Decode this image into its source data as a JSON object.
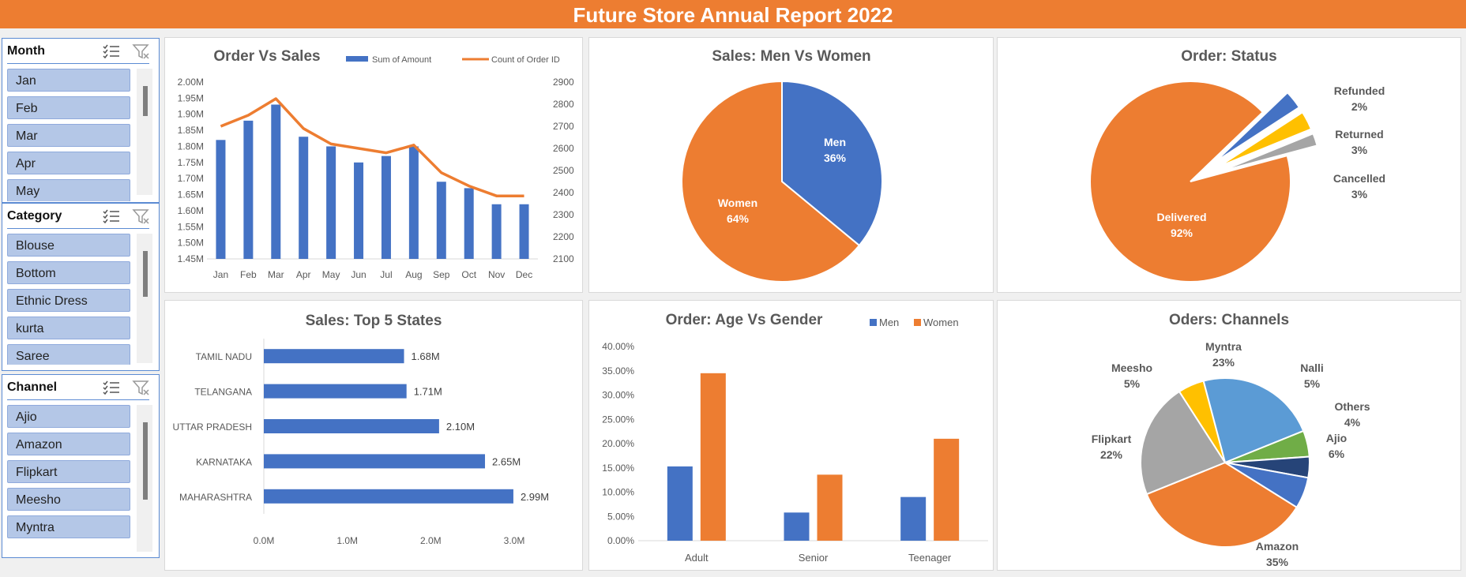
{
  "report_title": "Future Store Annual Report 2022",
  "slicers": [
    {
      "label": "Month",
      "items": [
        "Jan",
        "Feb",
        "Mar",
        "Apr",
        "May"
      ]
    },
    {
      "label": "Category",
      "items": [
        "Blouse",
        "Bottom",
        "Ethnic Dress",
        "kurta",
        "Saree"
      ]
    },
    {
      "label": "Channel",
      "items": [
        "Ajio",
        "Amazon",
        "Flipkart",
        "Meesho",
        "Myntra"
      ]
    }
  ],
  "colors": {
    "blue": "#4472c4",
    "orange": "#ed7d31",
    "gray": "#a5a5a5",
    "yellow": "#ffc000",
    "lightblue": "#5b9bd5",
    "green": "#70ad47",
    "navy": "#264478"
  },
  "chart_data": [
    {
      "id": "order_vs_sales",
      "type": "bar",
      "title": "Order Vs Sales",
      "categories": [
        "Jan",
        "Feb",
        "Mar",
        "Apr",
        "May",
        "Jun",
        "Jul",
        "Aug",
        "Sep",
        "Oct",
        "Nov",
        "Dec"
      ],
      "series": [
        {
          "name": "Sum of Amount",
          "kind": "bar",
          "axis": "left",
          "values": [
            1.82,
            1.88,
            1.93,
            1.83,
            1.8,
            1.75,
            1.77,
            1.8,
            1.69,
            1.67,
            1.62,
            1.62
          ]
        },
        {
          "name": "Count of Order ID",
          "kind": "line",
          "axis": "right",
          "values": [
            2700,
            2750,
            2825,
            2690,
            2620,
            2600,
            2580,
            2615,
            2490,
            2430,
            2385,
            2385
          ]
        }
      ],
      "ylim": [
        1.45,
        2.0
      ],
      "y_ticks": [
        "2.00M",
        "1.95M",
        "1.90M",
        "1.85M",
        "1.80M",
        "1.75M",
        "1.70M",
        "1.65M",
        "1.60M",
        "1.55M",
        "1.50M",
        "1.45M"
      ],
      "y2lim": [
        2100,
        2900
      ],
      "y2_ticks": [
        "2900",
        "2800",
        "2700",
        "2600",
        "2500",
        "2400",
        "2300",
        "2200",
        "2100"
      ],
      "legend": "top"
    },
    {
      "id": "men_vs_women",
      "type": "pie",
      "title": "Sales: Men Vs Women",
      "slices": [
        {
          "name": "Men",
          "pct_label": "36%",
          "value": 36
        },
        {
          "name": "Women",
          "pct_label": "64%",
          "value": 64
        }
      ]
    },
    {
      "id": "order_status",
      "type": "pie",
      "title": "Order: Status",
      "slices": [
        {
          "name": "Delivered",
          "pct_label": "92%",
          "value": 92
        },
        {
          "name": "Cancelled",
          "pct_label": "3%",
          "value": 3
        },
        {
          "name": "Returned",
          "pct_label": "3%",
          "value": 3
        },
        {
          "name": "Refunded",
          "pct_label": "2%",
          "value": 2
        }
      ]
    },
    {
      "id": "top5_states",
      "type": "bar",
      "orientation": "horizontal",
      "title": "Sales: Top 5 States",
      "categories": [
        "TAMIL NADU",
        "TELANGANA",
        "UTTAR PRADESH",
        "KARNATAKA",
        "MAHARASHTRA"
      ],
      "values": [
        1.68,
        1.71,
        2.1,
        2.65,
        2.99
      ],
      "value_labels": [
        "1.68M",
        "1.71M",
        "2.10M",
        "2.65M",
        "2.99M"
      ],
      "xlim": [
        0,
        3.0
      ],
      "x_ticks": [
        "0.0M",
        "1.0M",
        "2.0M",
        "3.0M"
      ]
    },
    {
      "id": "age_vs_gender",
      "type": "bar",
      "title": "Order: Age Vs Gender",
      "categories": [
        "Adult",
        "Senior",
        "Teenager"
      ],
      "series": [
        {
          "name": "Men",
          "values": [
            15.3,
            5.8,
            9.0
          ]
        },
        {
          "name": "Women",
          "values": [
            34.5,
            13.6,
            21.0
          ]
        }
      ],
      "ylim": [
        0,
        40
      ],
      "y_ticks": [
        "40.00%",
        "35.00%",
        "30.00%",
        "25.00%",
        "20.00%",
        "15.00%",
        "10.00%",
        "5.00%",
        "0.00%"
      ],
      "legend": "top-right"
    },
    {
      "id": "channels",
      "type": "pie",
      "title": "Oders: Channels",
      "slices": [
        {
          "name": "Amazon",
          "pct_label": "35%",
          "value": 35
        },
        {
          "name": "Flipkart",
          "pct_label": "22%",
          "value": 22
        },
        {
          "name": "Meesho",
          "pct_label": "5%",
          "value": 5
        },
        {
          "name": "Myntra",
          "pct_label": "23%",
          "value": 23
        },
        {
          "name": "Nalli",
          "pct_label": "5%",
          "value": 5
        },
        {
          "name": "Others",
          "pct_label": "4%",
          "value": 4
        },
        {
          "name": "Ajio",
          "pct_label": "6%",
          "value": 6
        }
      ]
    }
  ]
}
